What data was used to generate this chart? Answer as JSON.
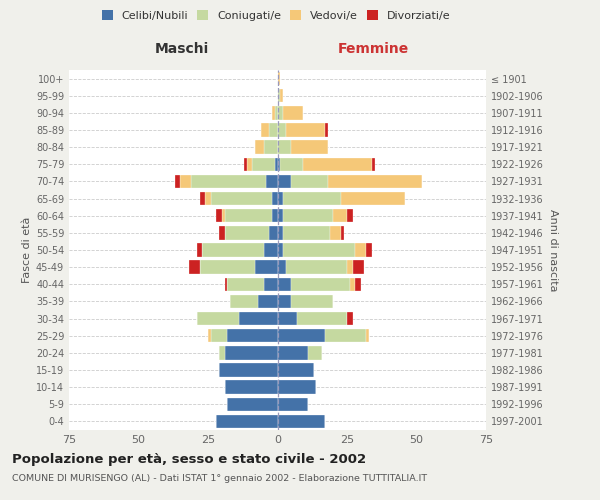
{
  "age_groups": [
    "0-4",
    "5-9",
    "10-14",
    "15-19",
    "20-24",
    "25-29",
    "30-34",
    "35-39",
    "40-44",
    "45-49",
    "50-54",
    "55-59",
    "60-64",
    "65-69",
    "70-74",
    "75-79",
    "80-84",
    "85-89",
    "90-94",
    "95-99",
    "100+"
  ],
  "birth_years": [
    "1997-2001",
    "1992-1996",
    "1987-1991",
    "1982-1986",
    "1977-1981",
    "1972-1976",
    "1967-1971",
    "1962-1966",
    "1957-1961",
    "1952-1956",
    "1947-1951",
    "1942-1946",
    "1937-1941",
    "1932-1936",
    "1927-1931",
    "1922-1926",
    "1917-1921",
    "1912-1916",
    "1907-1911",
    "1902-1906",
    "≤ 1901"
  ],
  "maschi_celibi": [
    22,
    18,
    19,
    21,
    19,
    18,
    14,
    7,
    5,
    8,
    5,
    3,
    2,
    2,
    4,
    1,
    0,
    0,
    0,
    0,
    0
  ],
  "maschi_coniugati": [
    0,
    0,
    0,
    0,
    2,
    6,
    15,
    10,
    13,
    20,
    22,
    16,
    17,
    22,
    27,
    8,
    5,
    3,
    1,
    0,
    0
  ],
  "maschi_vedovi": [
    0,
    0,
    0,
    0,
    0,
    1,
    0,
    0,
    0,
    0,
    0,
    0,
    1,
    2,
    4,
    2,
    3,
    3,
    1,
    0,
    0
  ],
  "maschi_divorziati": [
    0,
    0,
    0,
    0,
    0,
    0,
    0,
    0,
    1,
    4,
    2,
    2,
    2,
    2,
    2,
    1,
    0,
    0,
    0,
    0,
    0
  ],
  "femmine_nubili": [
    17,
    11,
    14,
    13,
    11,
    17,
    7,
    5,
    5,
    3,
    2,
    2,
    2,
    2,
    5,
    1,
    0,
    0,
    0,
    0,
    0
  ],
  "femmine_coniugate": [
    0,
    0,
    0,
    0,
    5,
    15,
    18,
    15,
    21,
    22,
    26,
    17,
    18,
    21,
    13,
    8,
    5,
    3,
    2,
    1,
    0
  ],
  "femmine_vedove": [
    0,
    0,
    0,
    0,
    0,
    1,
    0,
    0,
    2,
    2,
    4,
    4,
    5,
    23,
    34,
    25,
    13,
    14,
    7,
    1,
    1
  ],
  "femmine_divorziate": [
    0,
    0,
    0,
    0,
    0,
    0,
    2,
    0,
    2,
    4,
    2,
    1,
    2,
    0,
    0,
    1,
    0,
    1,
    0,
    0,
    0
  ],
  "color_celibi": "#4472a8",
  "color_coniugati": "#c5d9a0",
  "color_vedovi": "#f5c878",
  "color_divorziati": "#cc2222",
  "xlim": 75,
  "title": "Popolazione per età, sesso e stato civile - 2002",
  "subtitle": "COMUNE DI MURISENGO (AL) - Dati ISTAT 1° gennaio 2002 - Elaborazione TUTTITALIA.IT",
  "label_maschi": "Maschi",
  "label_femmine": "Femmine",
  "ylabel_left": "Fasce di età",
  "ylabel_right": "Anni di nascita",
  "legend_labels": [
    "Celibi/Nubili",
    "Coniugati/e",
    "Vedovi/e",
    "Divorziati/e"
  ],
  "bg_color": "#f0f0eb",
  "plot_bg_color": "#ffffff"
}
